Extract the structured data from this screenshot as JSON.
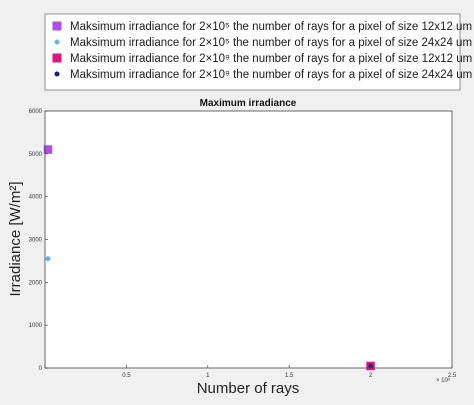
{
  "chart_data": {
    "type": "scatter",
    "title": "Maximum irradiance",
    "xlabel": "Number of rays",
    "ylabel": "Irradiance [W/m²]",
    "xlim": [
      0,
      2500000000
    ],
    "ylim": [
      0,
      6000
    ],
    "x_ticks": [
      0,
      500000000,
      1000000000,
      1500000000,
      2000000000,
      2500000000
    ],
    "x_tick_labels": [
      "",
      "0.5",
      "1",
      "1.5",
      "2",
      "2.5"
    ],
    "x_exponent_label": "× 10⁹",
    "y_ticks": [
      0,
      1000,
      2000,
      3000,
      4000,
      5000,
      6000
    ],
    "y_tick_labels": [
      "0",
      "1000",
      "2000",
      "3000",
      "4000",
      "5000",
      "6000"
    ],
    "grid": false,
    "legend_position": "top",
    "series": [
      {
        "name": "Maksimum irradiance for 2×10⁵ the number of rays for a pixel of size 12x12 um",
        "marker": "square",
        "color": "#b24ee6",
        "x": [
          200000
        ],
        "y": [
          5100
        ]
      },
      {
        "name": "Maksimum irradiance for 2×10⁵ the number of rays for a pixel of size 24x24 um",
        "marker": "circle",
        "color": "#5dbbe8",
        "x": [
          200000
        ],
        "y": [
          2550
        ]
      },
      {
        "name": "Maksimum irradiance for 2×10⁹ the number of rays for a pixel of size 12x12 um",
        "marker": "square",
        "color": "#e0147a",
        "x": [
          2000000000
        ],
        "y": [
          0
        ]
      },
      {
        "name": "Maksimum irradiance for 2×10⁹ the number of rays for a pixel of size 24x24 um",
        "marker": "circle",
        "color": "#0b1fa8",
        "x": [
          2000000000
        ],
        "y": [
          0
        ]
      }
    ]
  }
}
